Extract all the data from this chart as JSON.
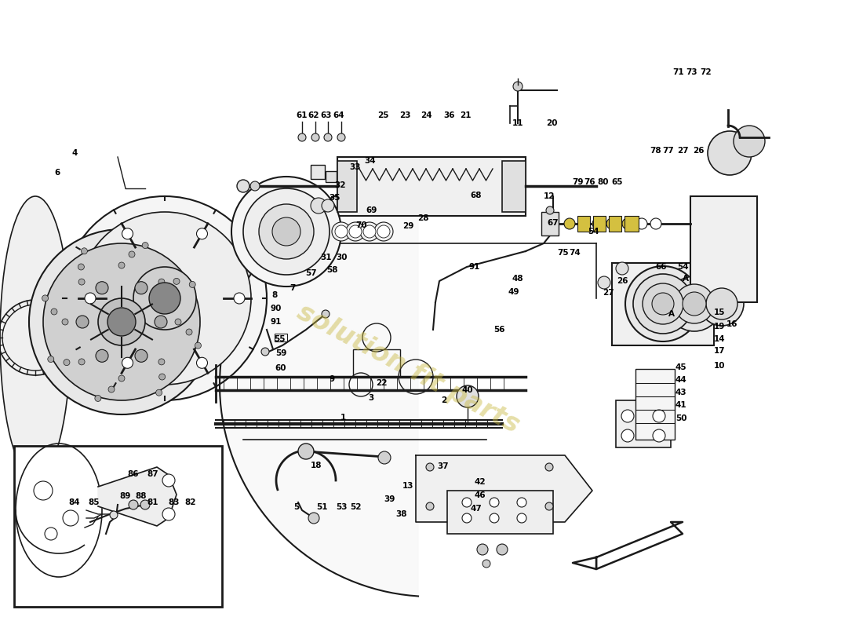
{
  "bg_color": "#ffffff",
  "line_color": "#1a1a1a",
  "watermark_text": "solution fit parts",
  "watermark_color": "#c8b840",
  "watermark_alpha": 0.45,
  "label_fontsize": 7.5,
  "figsize": [
    11.0,
    8.0
  ],
  "dpi": 100,
  "labels": [
    [
      "61",
      385,
      147
    ],
    [
      "62",
      400,
      147
    ],
    [
      "63",
      416,
      147
    ],
    [
      "64",
      432,
      147
    ],
    [
      "25",
      488,
      147
    ],
    [
      "23",
      516,
      147
    ],
    [
      "24",
      543,
      147
    ],
    [
      "36",
      573,
      147
    ],
    [
      "21",
      593,
      147
    ],
    [
      "4",
      95,
      195
    ],
    [
      "6",
      73,
      220
    ],
    [
      "11",
      660,
      157
    ],
    [
      "20",
      703,
      157
    ],
    [
      "71",
      865,
      92
    ],
    [
      "73",
      882,
      92
    ],
    [
      "72",
      900,
      92
    ],
    [
      "78",
      836,
      192
    ],
    [
      "77",
      852,
      192
    ],
    [
      "27",
      870,
      192
    ],
    [
      "26",
      890,
      192
    ],
    [
      "79",
      736,
      232
    ],
    [
      "76",
      752,
      232
    ],
    [
      "80",
      769,
      232
    ],
    [
      "65",
      787,
      232
    ],
    [
      "12",
      700,
      250
    ],
    [
      "75",
      718,
      322
    ],
    [
      "74",
      733,
      322
    ],
    [
      "67",
      705,
      284
    ],
    [
      "54",
      757,
      295
    ],
    [
      "54",
      870,
      340
    ],
    [
      "66",
      843,
      340
    ],
    [
      "15",
      917,
      398
    ],
    [
      "16",
      933,
      413
    ],
    [
      "19",
      917,
      416
    ],
    [
      "14",
      917,
      432
    ],
    [
      "17",
      917,
      447
    ],
    [
      "10",
      917,
      466
    ],
    [
      "48",
      660,
      355
    ],
    [
      "49",
      655,
      372
    ],
    [
      "56",
      636,
      420
    ],
    [
      "91",
      605,
      340
    ],
    [
      "26",
      793,
      358
    ],
    [
      "27",
      775,
      373
    ],
    [
      "45",
      868,
      468
    ],
    [
      "44",
      868,
      484
    ],
    [
      "43",
      868,
      500
    ],
    [
      "41",
      868,
      516
    ],
    [
      "50",
      868,
      533
    ],
    [
      "40",
      596,
      497
    ],
    [
      "2",
      566,
      510
    ],
    [
      "69",
      474,
      268
    ],
    [
      "70",
      461,
      287
    ],
    [
      "68",
      607,
      249
    ],
    [
      "33",
      453,
      213
    ],
    [
      "34",
      472,
      205
    ],
    [
      "32",
      434,
      236
    ],
    [
      "35",
      427,
      252
    ],
    [
      "29",
      520,
      288
    ],
    [
      "28",
      539,
      278
    ],
    [
      "30",
      436,
      328
    ],
    [
      "31",
      416,
      328
    ],
    [
      "57",
      397,
      348
    ],
    [
      "58",
      423,
      344
    ],
    [
      "7",
      373,
      367
    ],
    [
      "8",
      350,
      376
    ],
    [
      "90",
      352,
      393
    ],
    [
      "91",
      352,
      410
    ],
    [
      "55",
      356,
      432
    ],
    [
      "59",
      358,
      450
    ],
    [
      "60",
      358,
      469
    ],
    [
      "9",
      423,
      483
    ],
    [
      "22",
      486,
      488
    ],
    [
      "3",
      473,
      507
    ],
    [
      "1",
      437,
      532
    ],
    [
      "42",
      612,
      614
    ],
    [
      "46",
      612,
      631
    ],
    [
      "47",
      607,
      648
    ],
    [
      "37",
      565,
      594
    ],
    [
      "13",
      520,
      619
    ],
    [
      "39",
      496,
      636
    ],
    [
      "38",
      512,
      655
    ],
    [
      "5",
      378,
      646
    ],
    [
      "51",
      410,
      646
    ],
    [
      "53",
      435,
      646
    ],
    [
      "52",
      453,
      646
    ],
    [
      "18",
      403,
      593
    ],
    [
      "86",
      170,
      604
    ],
    [
      "87",
      195,
      604
    ],
    [
      "84",
      95,
      640
    ],
    [
      "85",
      120,
      640
    ],
    [
      "89",
      160,
      632
    ],
    [
      "88",
      180,
      632
    ],
    [
      "81",
      195,
      640
    ],
    [
      "83",
      222,
      640
    ],
    [
      "82",
      243,
      640
    ],
    [
      "A",
      874,
      355
    ],
    [
      "A",
      856,
      400
    ]
  ]
}
